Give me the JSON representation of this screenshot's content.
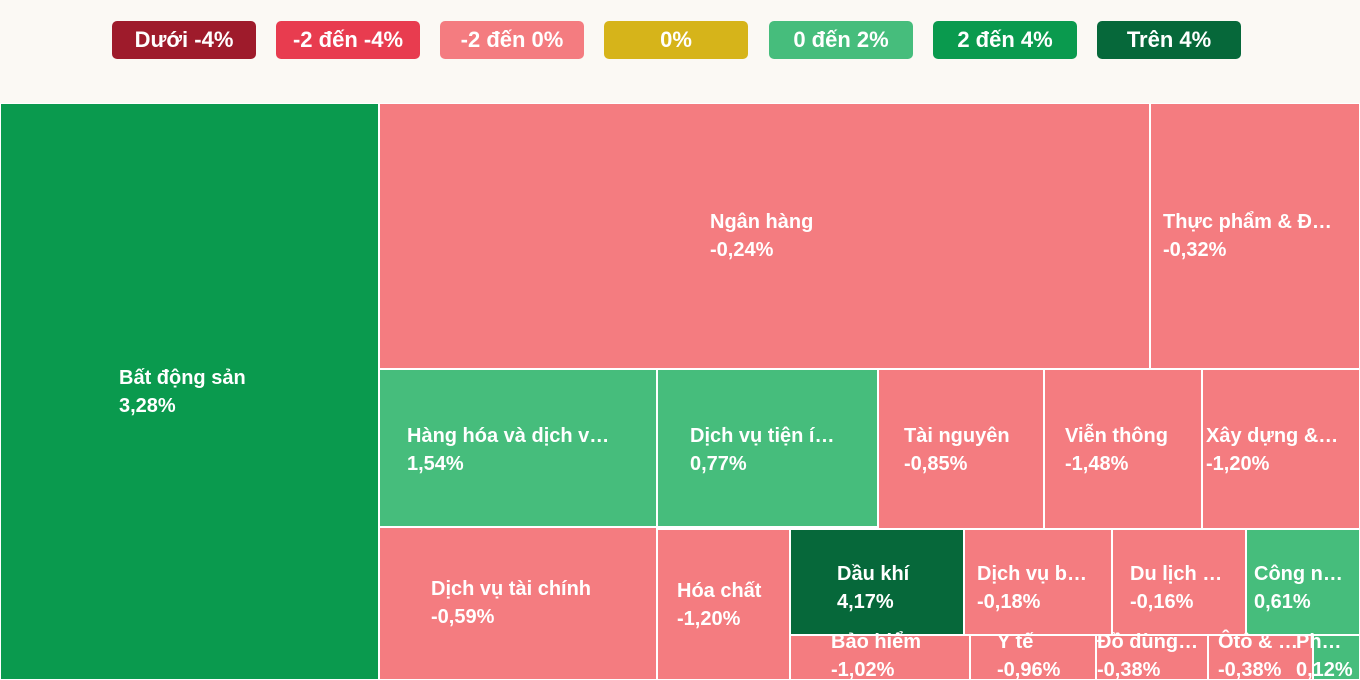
{
  "legend": [
    {
      "label": "Dưới -4%",
      "color": "#9e1b2b"
    },
    {
      "label": "-2 đến -4%",
      "color": "#e83c4f"
    },
    {
      "label": "-2 đến 0%",
      "color": "#f47c80"
    },
    {
      "label": "0%",
      "color": "#d6b41a"
    },
    {
      "label": "0 đến 2%",
      "color": "#46bd7c"
    },
    {
      "label": "2 đến 4%",
      "color": "#0a9a4e"
    },
    {
      "label": "Trên 4%",
      "color": "#06683a"
    }
  ],
  "chart_data": {
    "type": "treemap",
    "items": [
      {
        "name": "Bất động sản",
        "value": "3,28%",
        "color": "#0a9a4e"
      },
      {
        "name": "Ngân hàng",
        "value": "-0,24%",
        "color": "#f47c80"
      },
      {
        "name": "Thực phẩm & Đ…",
        "value": "-0,32%",
        "color": "#f47c80"
      },
      {
        "name": "Hàng hóa và dịch v…",
        "value": "1,54%",
        "color": "#46bd7c"
      },
      {
        "name": "Dịch vụ tiện í…",
        "value": "0,77%",
        "color": "#46bd7c"
      },
      {
        "name": "Tài nguyên",
        "value": "-0,85%",
        "color": "#f47c80"
      },
      {
        "name": "Viễn thông",
        "value": "-1,48%",
        "color": "#f47c80"
      },
      {
        "name": "Xây dựng &…",
        "value": "-1,20%",
        "color": "#f47c80"
      },
      {
        "name": "Dịch vụ tài chính",
        "value": "-0,59%",
        "color": "#f47c80"
      },
      {
        "name": "Hóa chất",
        "value": "-1,20%",
        "color": "#f47c80"
      },
      {
        "name": "Dầu khí",
        "value": "4,17%",
        "color": "#06683a"
      },
      {
        "name": "Dịch vụ b…",
        "value": "-0,18%",
        "color": "#f47c80"
      },
      {
        "name": "Du lịch …",
        "value": "-0,16%",
        "color": "#f47c80"
      },
      {
        "name": "Công n…",
        "value": "0,61%",
        "color": "#46bd7c"
      },
      {
        "name": "Bảo hiểm",
        "value": "-1,02%",
        "color": "#f47c80"
      },
      {
        "name": "Y tế",
        "value": "-0,96%",
        "color": "#f47c80"
      },
      {
        "name": "Đồ dùng…",
        "value": "-0,38%",
        "color": "#f47c80"
      },
      {
        "name": "Ôtô & …",
        "value": "-0,38%",
        "color": "#f47c80"
      },
      {
        "name": "Ph…",
        "value": "0,12%",
        "color": "#46bd7c"
      }
    ]
  }
}
